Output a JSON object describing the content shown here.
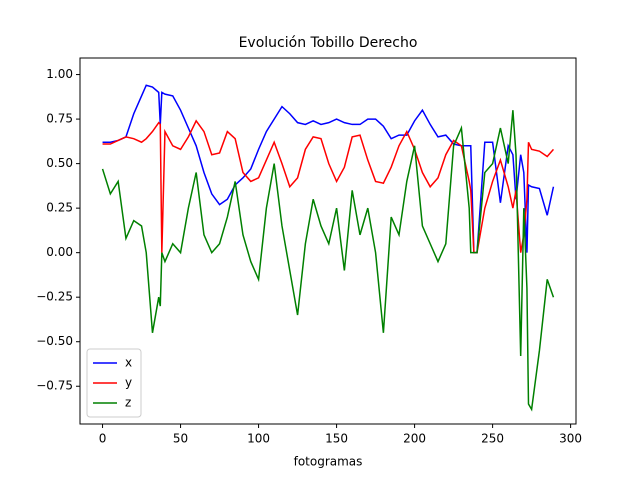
{
  "chart_data": {
    "type": "line",
    "title": "Evolución Tobillo Derecho",
    "xlabel": "fotogramas",
    "x": [
      0,
      5,
      10,
      15,
      20,
      25,
      28,
      32,
      36,
      37,
      38,
      40,
      45,
      50,
      55,
      60,
      65,
      70,
      75,
      80,
      85,
      90,
      95,
      100,
      105,
      110,
      115,
      120,
      125,
      130,
      135,
      140,
      145,
      150,
      155,
      160,
      165,
      170,
      175,
      180,
      185,
      190,
      195,
      200,
      205,
      210,
      215,
      220,
      225,
      230,
      235,
      236,
      238,
      240,
      245,
      250,
      255,
      260,
      263,
      265,
      268,
      270,
      272,
      273,
      275,
      280,
      285,
      289
    ],
    "series": [
      {
        "name": "x",
        "color": "#0000ff",
        "values": [
          0.62,
          0.62,
          0.63,
          0.65,
          0.78,
          0.88,
          0.94,
          0.93,
          0.9,
          0.72,
          0.9,
          0.89,
          0.88,
          0.8,
          0.7,
          0.6,
          0.45,
          0.33,
          0.27,
          0.3,
          0.38,
          0.42,
          0.47,
          0.58,
          0.68,
          0.75,
          0.82,
          0.78,
          0.73,
          0.72,
          0.74,
          0.72,
          0.73,
          0.75,
          0.73,
          0.72,
          0.72,
          0.75,
          0.75,
          0.71,
          0.64,
          0.66,
          0.66,
          0.74,
          0.8,
          0.72,
          0.65,
          0.66,
          0.61,
          0.6,
          0.6,
          0.6,
          0.0,
          0.0,
          0.62,
          0.62,
          0.28,
          0.6,
          0.55,
          0.3,
          0.55,
          0.45,
          0.0,
          0.38,
          0.37,
          0.36,
          0.21,
          0.37
        ]
      },
      {
        "name": "y",
        "color": "#ff0000",
        "values": [
          0.61,
          0.61,
          0.63,
          0.65,
          0.64,
          0.62,
          0.64,
          0.68,
          0.73,
          0.72,
          0.0,
          0.68,
          0.6,
          0.58,
          0.65,
          0.74,
          0.68,
          0.55,
          0.56,
          0.68,
          0.64,
          0.45,
          0.4,
          0.42,
          0.52,
          0.62,
          0.5,
          0.37,
          0.42,
          0.58,
          0.65,
          0.64,
          0.5,
          0.4,
          0.48,
          0.65,
          0.66,
          0.52,
          0.4,
          0.39,
          0.48,
          0.6,
          0.68,
          0.58,
          0.45,
          0.37,
          0.42,
          0.55,
          0.63,
          0.6,
          0.4,
          0.35,
          0.0,
          0.0,
          0.25,
          0.4,
          0.52,
          0.37,
          0.25,
          0.35,
          0.0,
          0.1,
          0.3,
          0.62,
          0.58,
          0.57,
          0.54,
          0.58
        ]
      },
      {
        "name": "z",
        "color": "#008000",
        "values": [
          0.47,
          0.33,
          0.4,
          0.08,
          0.18,
          0.15,
          0.0,
          -0.45,
          -0.25,
          -0.3,
          0.0,
          -0.05,
          0.05,
          0.0,
          0.25,
          0.45,
          0.1,
          0.0,
          0.05,
          0.2,
          0.4,
          0.1,
          -0.05,
          -0.15,
          0.25,
          0.5,
          0.15,
          -0.1,
          -0.35,
          0.05,
          0.3,
          0.15,
          0.05,
          0.25,
          -0.1,
          0.35,
          0.1,
          0.25,
          0.0,
          -0.45,
          0.2,
          0.1,
          0.4,
          0.6,
          0.15,
          0.05,
          -0.05,
          0.05,
          0.6,
          0.7,
          0.25,
          0.0,
          0.0,
          0.0,
          0.45,
          0.5,
          0.7,
          0.5,
          0.8,
          0.55,
          -0.58,
          0.25,
          -0.2,
          -0.85,
          -0.88,
          -0.55,
          -0.15,
          -0.25
        ]
      }
    ],
    "xlim": [
      -14.45,
      303.45
    ],
    "xticks": [
      0,
      50,
      100,
      150,
      200,
      250,
      300
    ],
    "ylim": [
      -0.962,
      1.093
    ],
    "yticks": [
      {
        "value": -0.75,
        "label": "−0.75"
      },
      {
        "value": -0.5,
        "label": "−0.50"
      },
      {
        "value": -0.25,
        "label": "−0.25"
      },
      {
        "value": 0,
        "label": "0.00"
      },
      {
        "value": 0.25,
        "label": "0.25"
      },
      {
        "value": 0.5,
        "label": "0.50"
      },
      {
        "value": 0.75,
        "label": "0.75"
      },
      {
        "value": 1,
        "label": "1.00"
      }
    ],
    "legend": "lower left"
  }
}
